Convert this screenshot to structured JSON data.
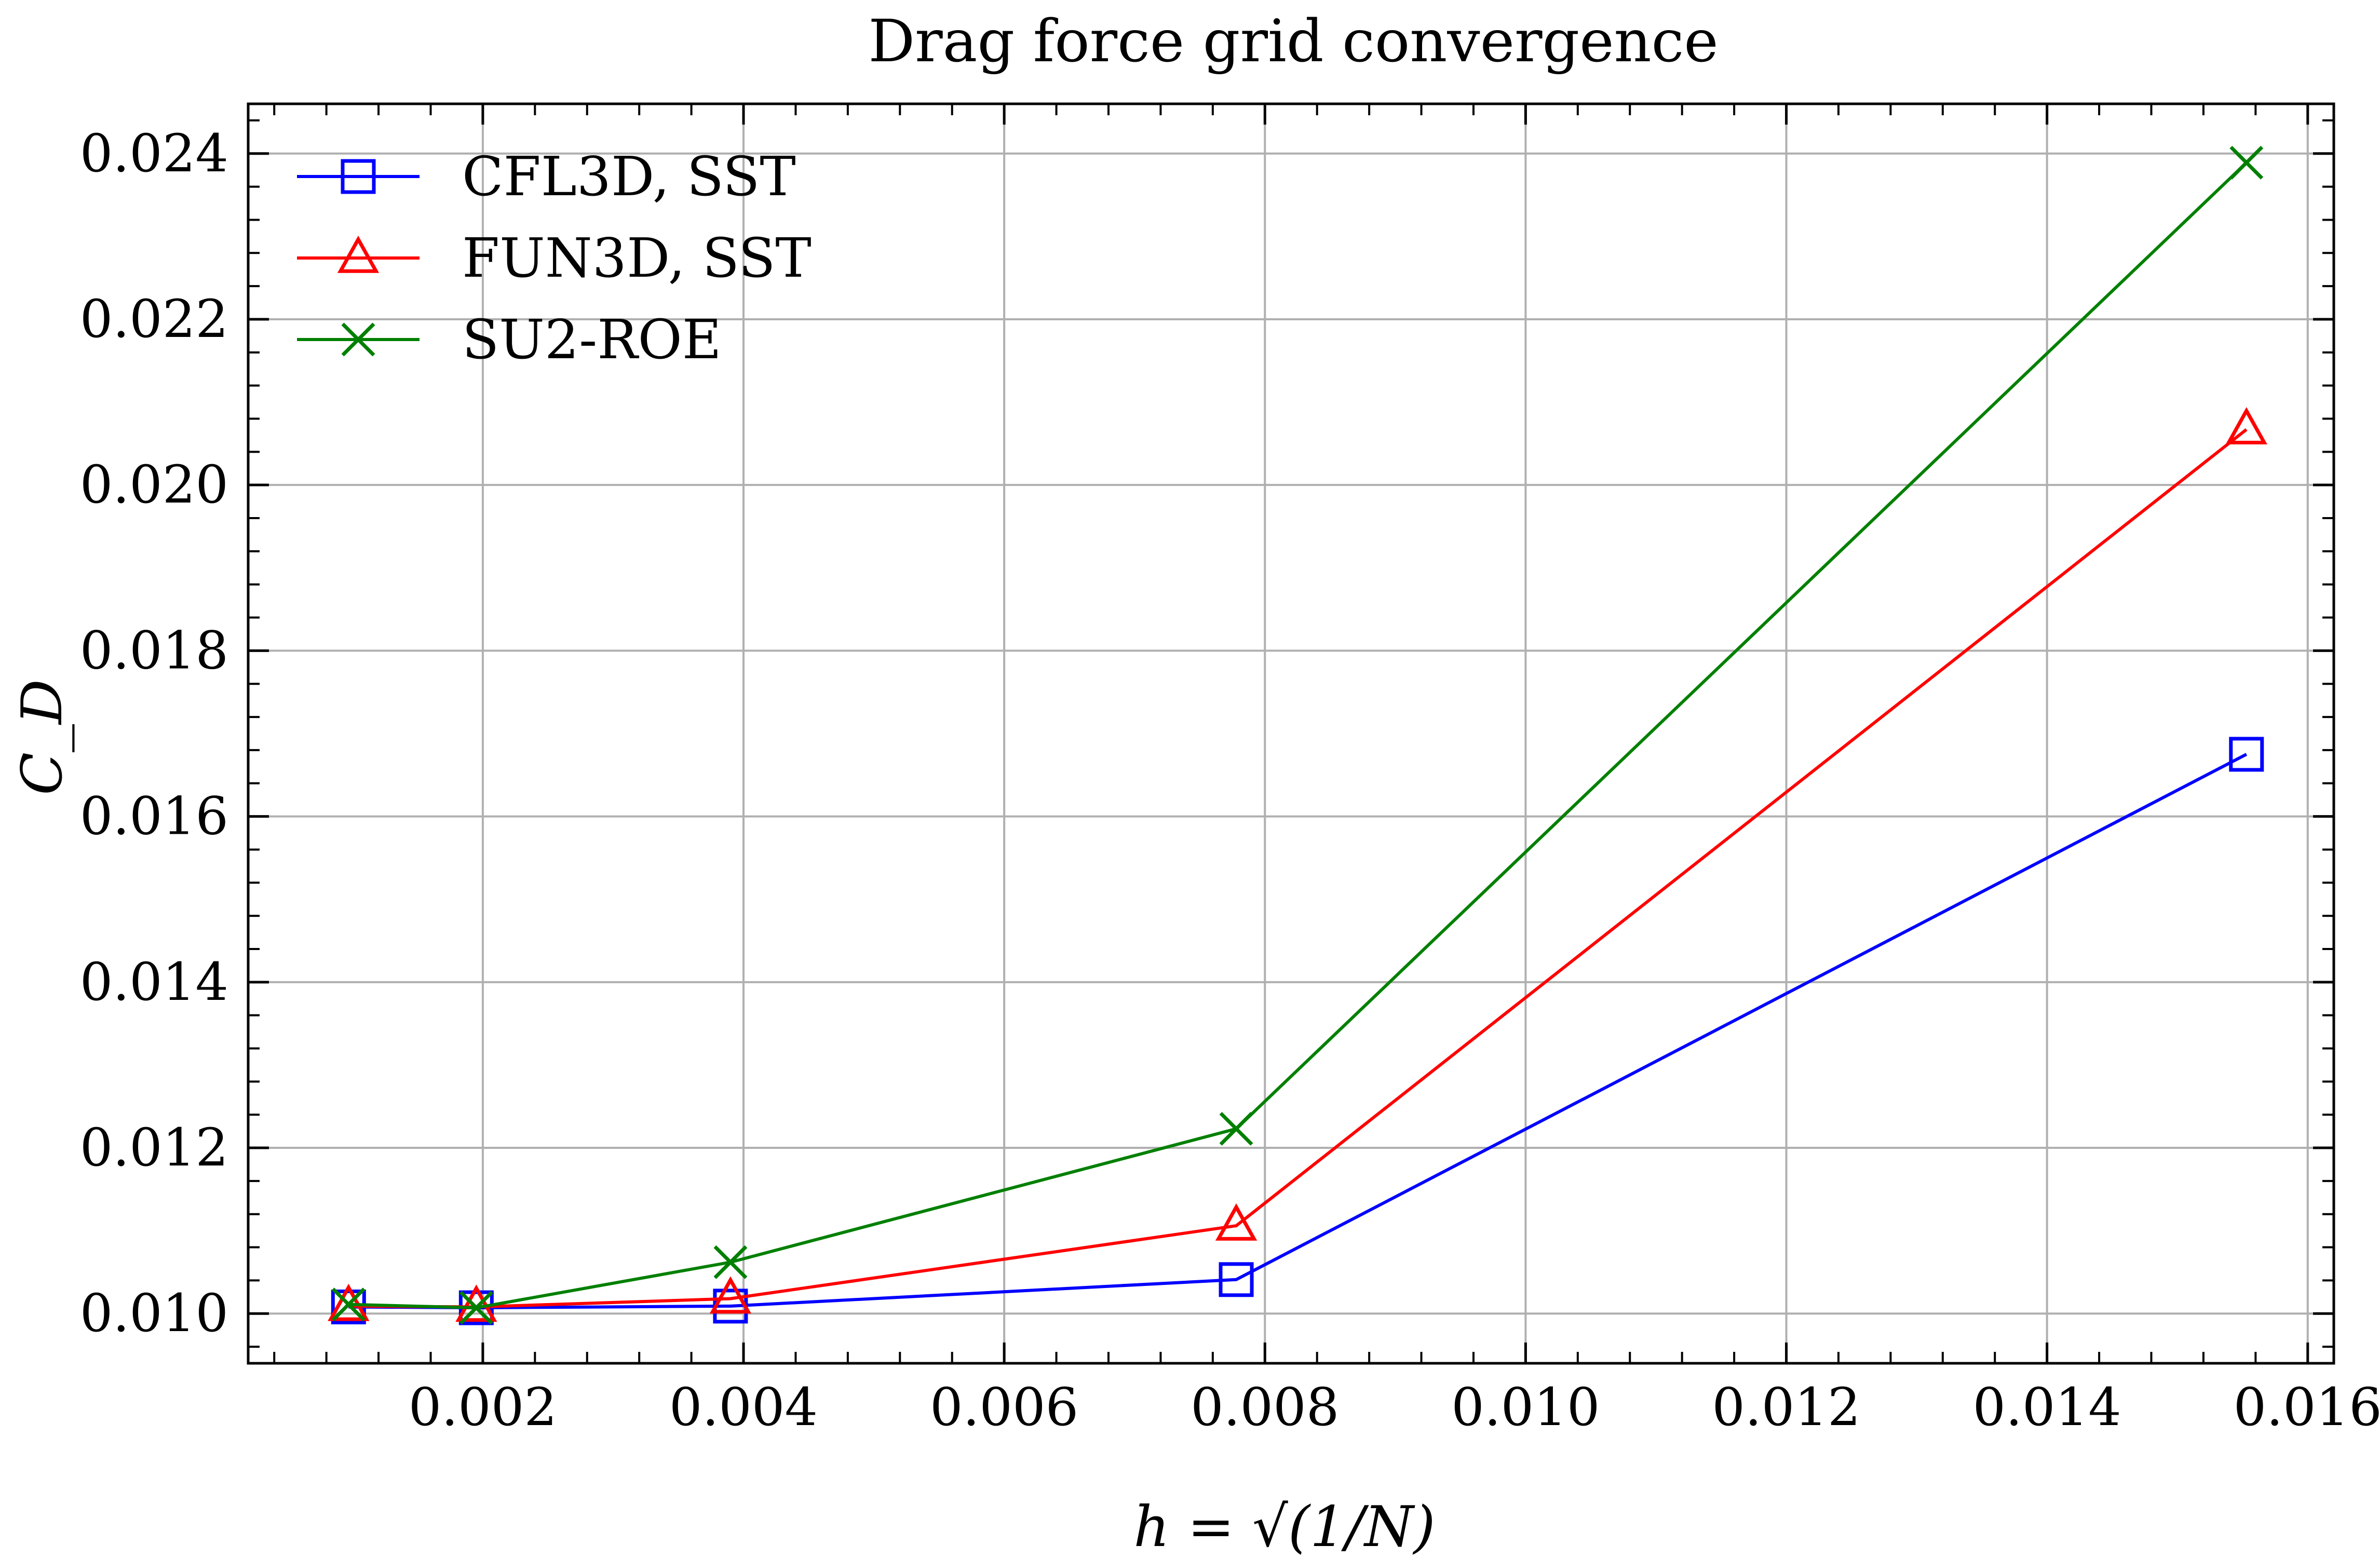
{
  "chart_data": {
    "type": "line",
    "title": "Drag force grid convergence",
    "xlabel": "h = √(1/N)",
    "ylabel": "C_D",
    "xlim": [
      0.0002,
      0.0162
    ],
    "ylim": [
      0.0094,
      0.0246
    ],
    "grid": true,
    "legend_position": "top-left",
    "xticks": [
      {
        "value": 0.002,
        "label": "0.002"
      },
      {
        "value": 0.004,
        "label": "0.004"
      },
      {
        "value": 0.006,
        "label": "0.006"
      },
      {
        "value": 0.008,
        "label": "0.008"
      },
      {
        "value": 0.01,
        "label": "0.010"
      },
      {
        "value": 0.012,
        "label": "0.012"
      },
      {
        "value": 0.014,
        "label": "0.014"
      },
      {
        "value": 0.016,
        "label": "0.016"
      }
    ],
    "yticks": [
      {
        "value": 0.01,
        "label": "0.010"
      },
      {
        "value": 0.012,
        "label": "0.012"
      },
      {
        "value": 0.014,
        "label": "0.014"
      },
      {
        "value": 0.016,
        "label": "0.016"
      },
      {
        "value": 0.018,
        "label": "0.018"
      },
      {
        "value": 0.02,
        "label": "0.020"
      },
      {
        "value": 0.022,
        "label": "0.022"
      },
      {
        "value": 0.024,
        "label": "0.024"
      }
    ],
    "x": [
      0.00097,
      0.00195,
      0.0039,
      0.00778,
      0.01553
    ],
    "series": [
      {
        "name": "CFL3D, SST",
        "color": "#0000ff",
        "marker": "square",
        "values": [
          0.01008,
          0.01007,
          0.01009,
          0.01041,
          0.01675
        ]
      },
      {
        "name": "FUN3D, SST",
        "color": "#ff0000",
        "marker": "triangle",
        "values": [
          0.01009,
          0.01008,
          0.01018,
          0.01106,
          0.02067
        ]
      },
      {
        "name": "SU2-ROE",
        "color": "#008000",
        "marker": "x",
        "values": [
          0.01011,
          0.01007,
          0.01062,
          0.01223,
          0.02389
        ]
      }
    ]
  }
}
